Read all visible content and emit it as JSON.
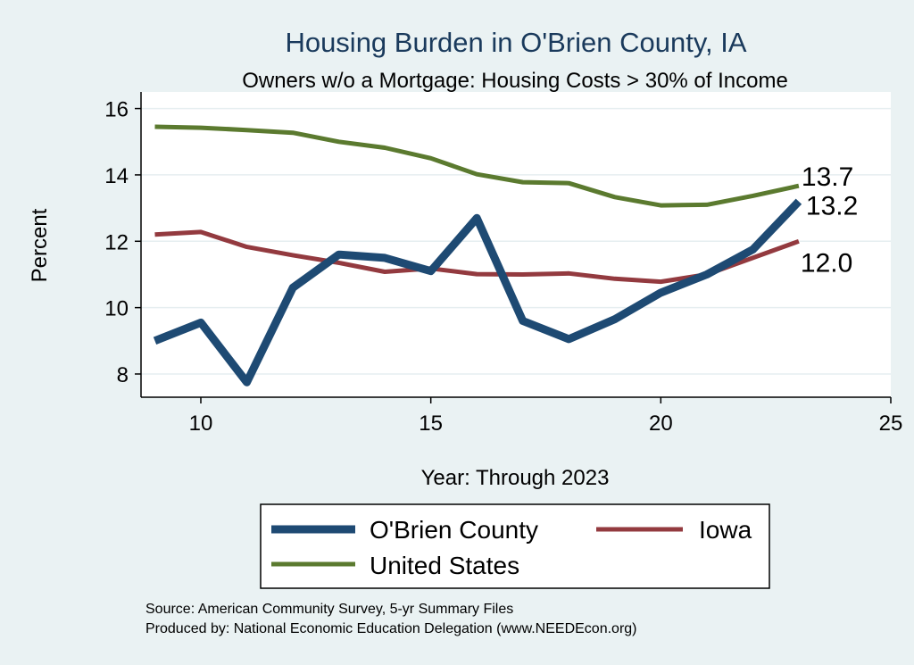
{
  "chart_data": {
    "type": "line",
    "title": "Housing Burden in O'Brien County, IA",
    "subtitle": "Owners w/o a Mortgage: Housing Costs > 30% of Income",
    "xlabel": "Year: Through 2023",
    "ylabel": "Percent",
    "xlim": [
      8.7,
      25
    ],
    "ylim": [
      7.3,
      16.5
    ],
    "x_ticks": [
      10,
      15,
      20,
      25
    ],
    "y_ticks": [
      8,
      10,
      12,
      14,
      16
    ],
    "grid": true,
    "x": [
      9,
      10,
      11,
      12,
      13,
      14,
      15,
      16,
      17,
      18,
      19,
      20,
      21,
      22,
      23
    ],
    "series": [
      {
        "name": "O'Brien County",
        "color": "#1e4a73",
        "values": [
          9.0,
          9.55,
          7.75,
          10.6,
          11.6,
          11.5,
          11.1,
          12.7,
          9.6,
          9.05,
          9.65,
          10.45,
          11.0,
          11.75,
          13.2
        ],
        "end_label": "13.2"
      },
      {
        "name": "Iowa",
        "color": "#933a3f",
        "values": [
          12.2,
          12.28,
          11.83,
          11.58,
          11.35,
          11.08,
          11.18,
          11.01,
          11.0,
          11.03,
          10.87,
          10.78,
          11.0,
          11.5,
          12.0
        ],
        "end_label": "12.0"
      },
      {
        "name": "United States",
        "color": "#5b7a2f",
        "values": [
          15.45,
          15.42,
          15.35,
          15.27,
          15.0,
          14.82,
          14.5,
          14.02,
          13.78,
          13.75,
          13.33,
          13.08,
          13.1,
          13.37,
          13.67
        ],
        "end_label": "13.7"
      }
    ],
    "legend": [
      "O'Brien County",
      "Iowa",
      "United States"
    ],
    "legend_position": "bottom"
  },
  "source_note": "Source: American Community Survey, 5-yr Summary Files",
  "producer_note": "Produced by: National Economic Education Delegation (www.NEEDEcon.org)"
}
